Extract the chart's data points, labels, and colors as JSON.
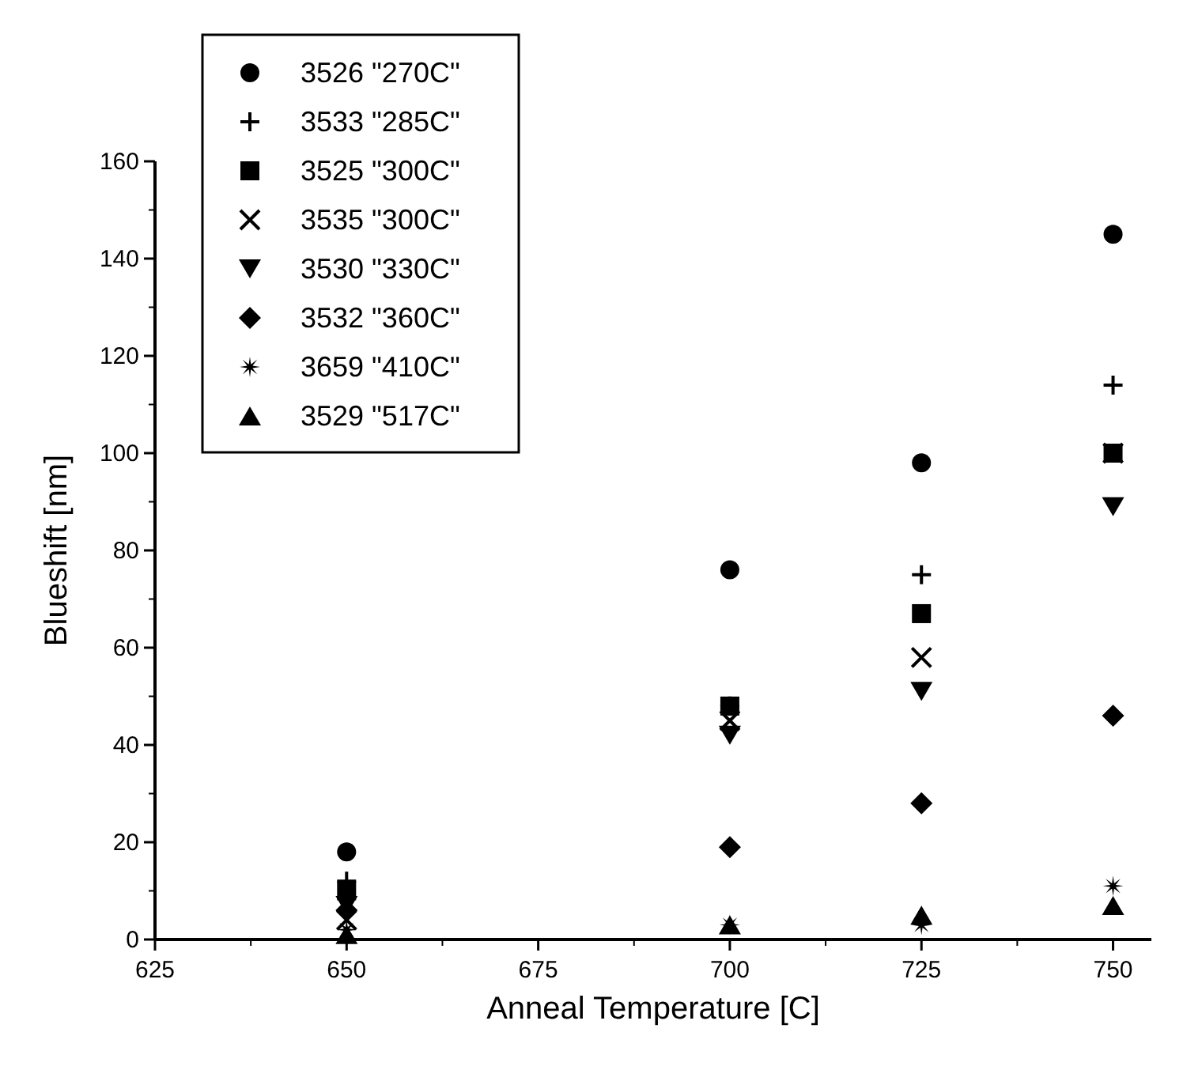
{
  "chart_data": {
    "type": "scatter",
    "xlabel": "Anneal Temperature [C]",
    "ylabel": "Blueshift [nm]",
    "x": [
      650,
      700,
      725,
      750
    ],
    "xlim": [
      625,
      755
    ],
    "xticks": [
      625,
      650,
      675,
      700,
      725,
      750
    ],
    "ylim": [
      0,
      160
    ],
    "yticks": [
      0,
      20,
      40,
      60,
      80,
      100,
      120,
      140,
      160
    ],
    "grid": false,
    "legend": "top left",
    "series": [
      {
        "name": "3526 \"270C\"",
        "color": "#000000",
        "marker": "circle",
        "values": [
          18,
          76,
          98,
          145
        ]
      },
      {
        "name": "3533 \"285C\"",
        "color": "#000000",
        "marker": "plus",
        "values": [
          12,
          48,
          75,
          114
        ]
      },
      {
        "name": "3525 \"300C\"",
        "color": "#000000",
        "marker": "square",
        "values": [
          10,
          48,
          67,
          100
        ]
      },
      {
        "name": "3535 \"300C\"",
        "color": "#000000",
        "marker": "cross",
        "values": [
          4,
          45,
          58,
          100
        ]
      },
      {
        "name": "3530 \"330C\"",
        "color": "#000000",
        "marker": "triangle-down",
        "values": [
          7,
          42,
          51,
          89
        ]
      },
      {
        "name": "3532 \"360C\"",
        "color": "#000000",
        "marker": "diamond",
        "values": [
          6,
          19,
          28,
          46
        ]
      },
      {
        "name": "3659 \"410C\"",
        "color": "#000000",
        "marker": "star",
        "values": [
          2,
          3,
          3,
          11
        ]
      },
      {
        "name": "3529 \"517C\"",
        "color": "#000000",
        "marker": "triangle",
        "values": [
          1,
          3,
          5,
          7
        ]
      }
    ]
  }
}
